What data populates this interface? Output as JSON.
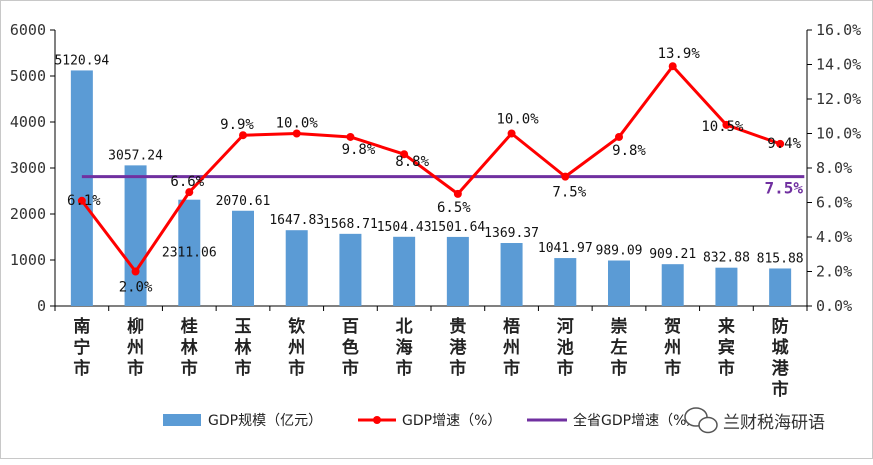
{
  "colors": {
    "bar": "#5b9bd5",
    "line": "#ff0000",
    "province_line": "#7030a0",
    "axis": "#000000",
    "province_label": "#7030a0"
  },
  "chart_data": {
    "type": "bar",
    "categories": [
      "南宁市",
      "柳州市",
      "桂林市",
      "玉林市",
      "钦州市",
      "百色市",
      "北海市",
      "贵港市",
      "梧州市",
      "河池市",
      "崇左市",
      "贺州市",
      "来宾市",
      "防城港市"
    ],
    "series": [
      {
        "name": "GDP规模（亿元）",
        "type": "bar",
        "axis": "left",
        "values": [
          5120.94,
          3057.24,
          2311.06,
          2070.61,
          1647.83,
          1568.71,
          1504.43,
          1501.64,
          1369.37,
          1041.97,
          989.09,
          909.21,
          832.88,
          815.88
        ],
        "labels": [
          "5120.94",
          "3057.24",
          "2311.06",
          "2070.61",
          "1647.83",
          "1568.71",
          "1504.43",
          "1501.64",
          "1369.37",
          "1041.97",
          "989.09",
          "909.21",
          "832.88",
          "815.88"
        ]
      },
      {
        "name": "GDP增速（%）",
        "type": "line",
        "axis": "right",
        "values": [
          6.1,
          2.0,
          6.6,
          9.9,
          10.0,
          9.8,
          8.8,
          6.5,
          10.0,
          7.5,
          9.8,
          13.9,
          10.5,
          9.4
        ],
        "labels": [
          "6.1%",
          "2.0%",
          "6.6%",
          "9.9%",
          "10.0%",
          "9.8%",
          "8.8%",
          "6.5%",
          "10.0%",
          "7.5%",
          "9.8%",
          "13.9%",
          "10.5%",
          "9.4%"
        ]
      },
      {
        "name": "全省GDP增速（%）",
        "type": "line",
        "axis": "right",
        "value": 7.5,
        "label": "7.5%"
      }
    ],
    "y_left": {
      "range": [
        0,
        6000
      ],
      "ticks": [
        "0",
        "1000",
        "2000",
        "3000",
        "4000",
        "5000",
        "6000"
      ]
    },
    "y_right": {
      "range": [
        0,
        16
      ],
      "ticks": [
        "0.0%",
        "2.0%",
        "4.0%",
        "6.0%",
        "8.0%",
        "10.0%",
        "12.0%",
        "14.0%",
        "16.0%"
      ]
    },
    "grid": false,
    "legend_position": "bottom"
  },
  "watermark": {
    "text": "兰财税海研语",
    "icon": "wechat-icon"
  }
}
